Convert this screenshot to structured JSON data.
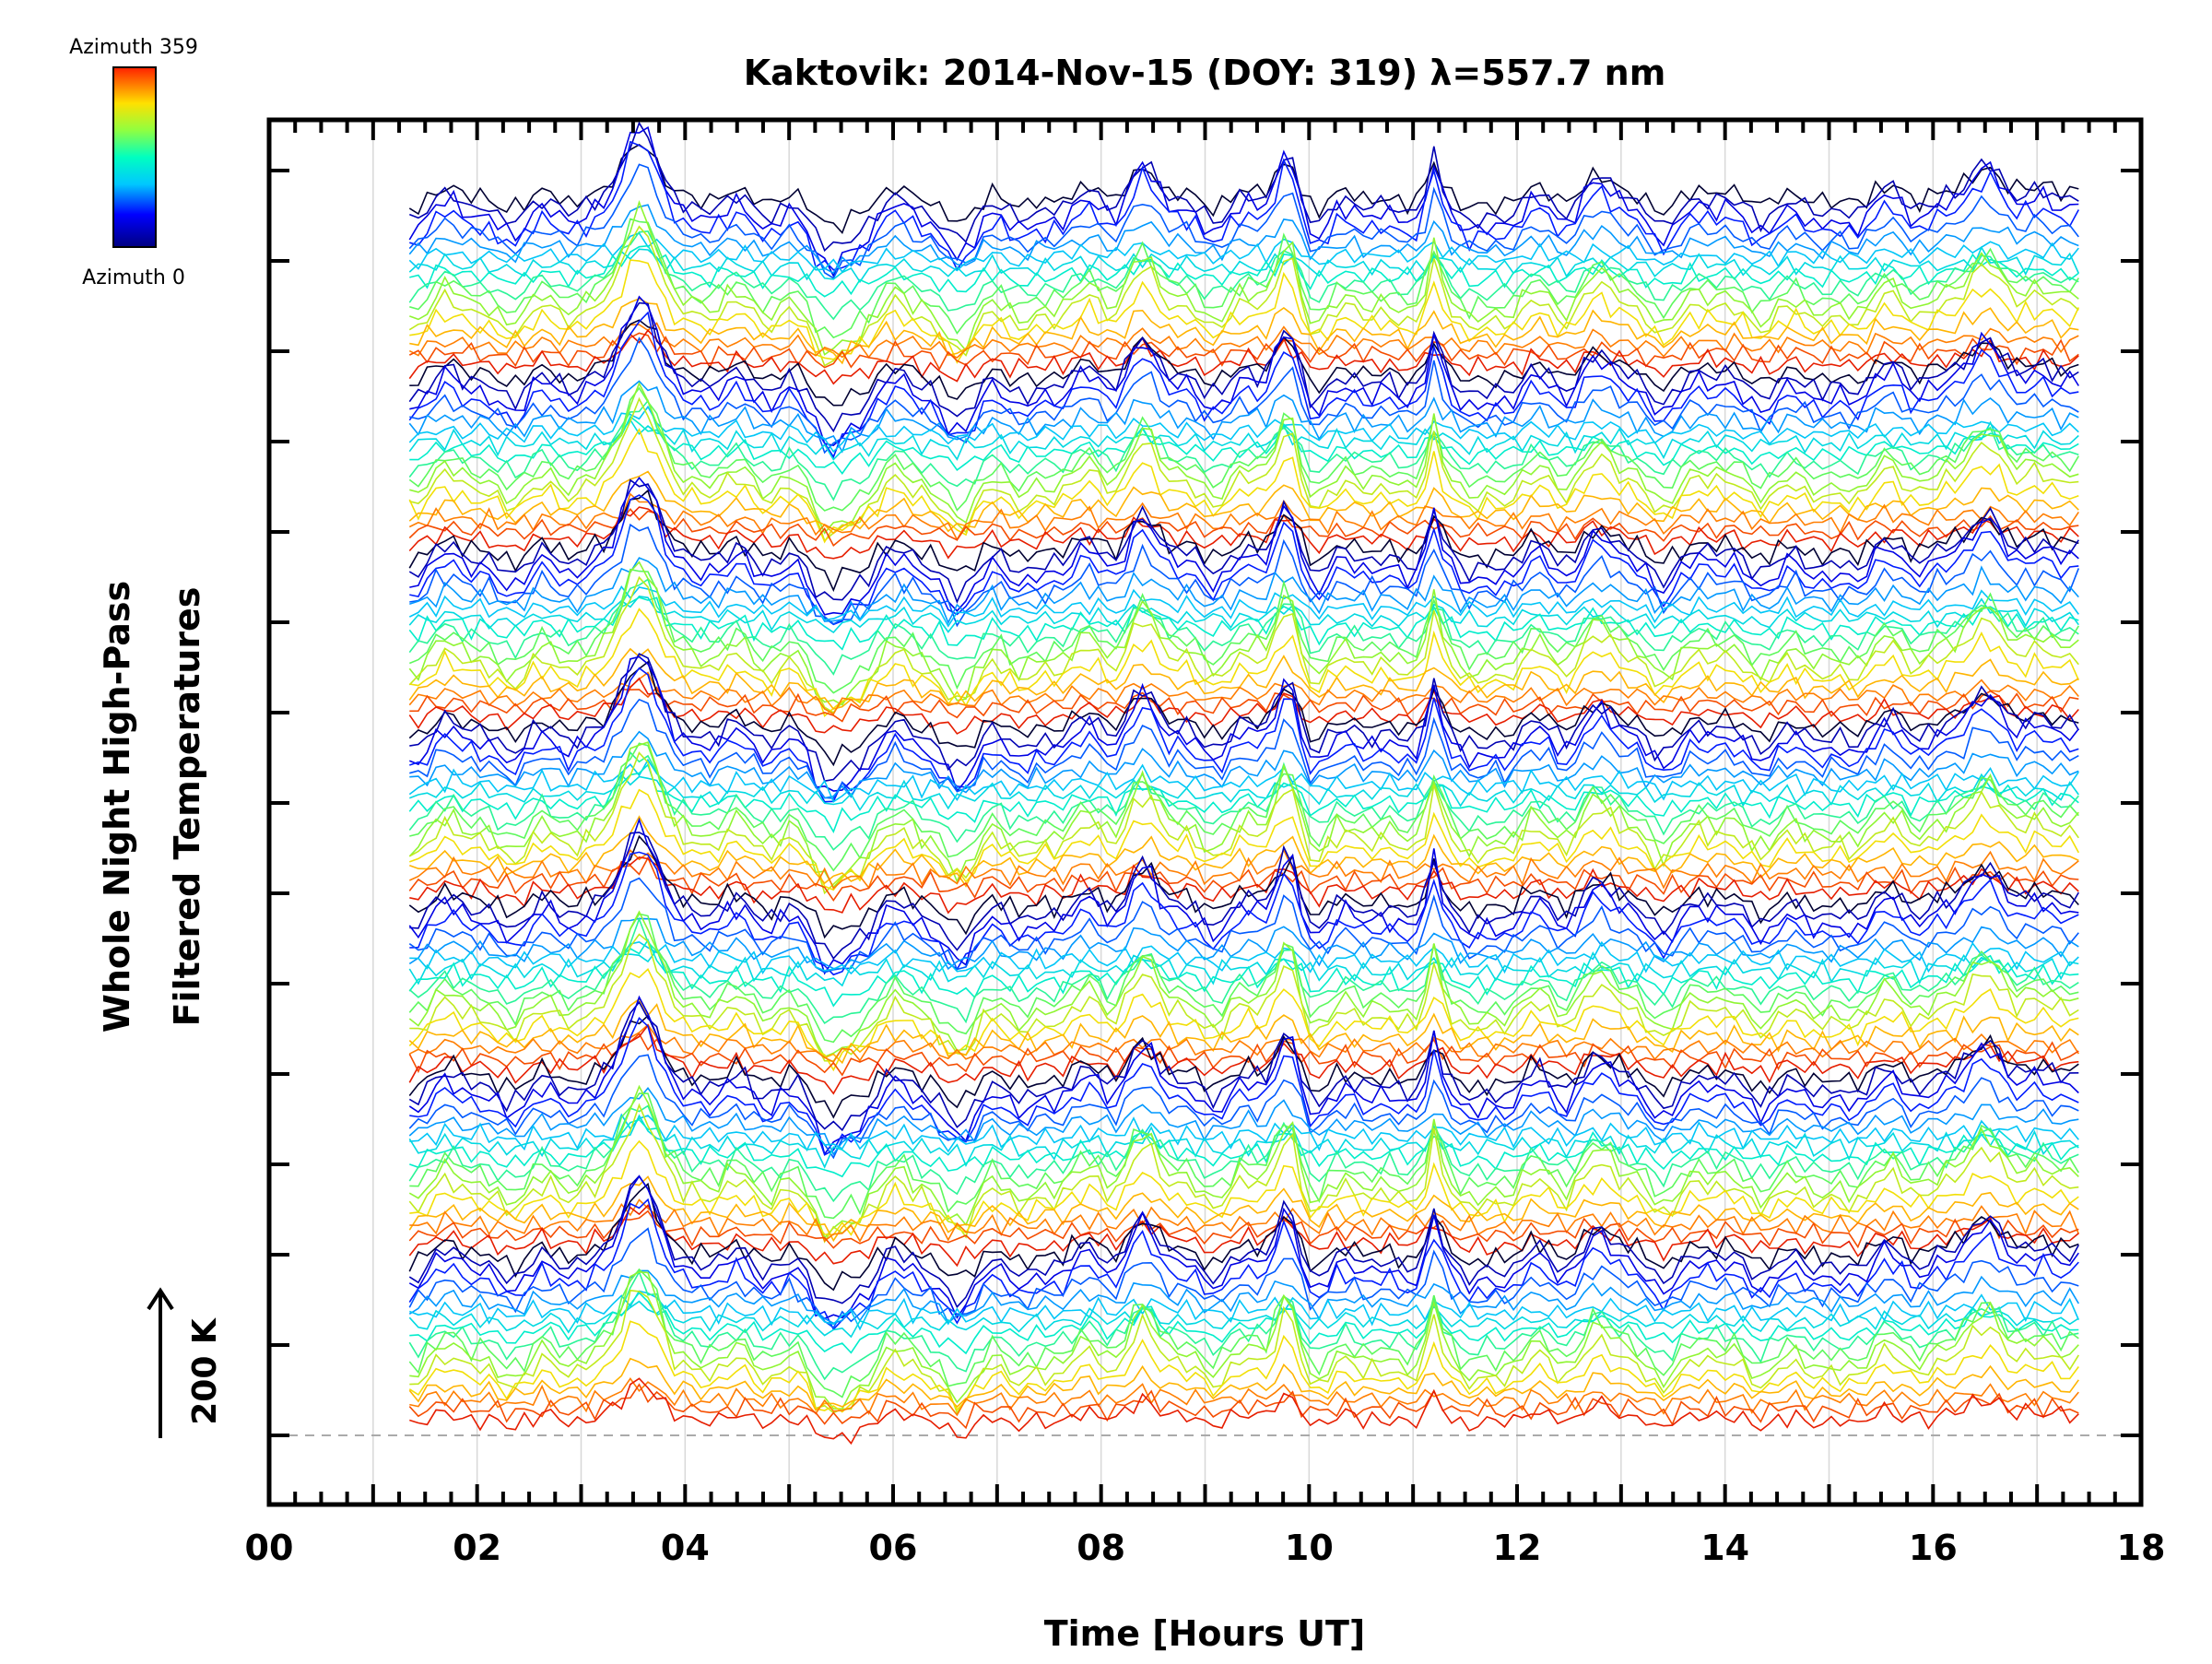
{
  "chart_data": {
    "type": "line",
    "title": "Kaktovik: 2014-Nov-15 (DOY: 319) λ=557.7 nm",
    "xlabel": "Time [Hours UT]",
    "ylabel": [
      "Whole Night High-Pass",
      "Filtered Temperatures"
    ],
    "xlim": [
      0,
      18
    ],
    "x_ticks": [
      "00",
      "02",
      "04",
      "06",
      "08",
      "10",
      "12",
      "14",
      "16",
      "18"
    ],
    "y_ticks_count": 15,
    "grid": "vertical every 1 hour",
    "data_range_hours": [
      1.35,
      17.4
    ],
    "baseline_note": "dashed reference line at bottom trace",
    "scale_bar": {
      "label": "200 K",
      "direction": "up"
    },
    "colorbar": {
      "top_label": "Azimuth 359",
      "bottom_label": "Azimuth 0",
      "colormap": "rainbow (blue to red)"
    },
    "series_groups": 7,
    "traces_per_group": 18,
    "common_features": [
      {
        "hour": 3.6,
        "feature": "strong positive peak"
      },
      {
        "hour": 5.4,
        "feature": "deep trough"
      },
      {
        "hour": 8.4,
        "feature": "positive peak"
      },
      {
        "hour": 9.8,
        "feature": "sharp positive peak"
      },
      {
        "hour": 11.2,
        "feature": "sharp spike"
      },
      {
        "hour": 16.5,
        "feature": "broad positive peak"
      }
    ]
  }
}
